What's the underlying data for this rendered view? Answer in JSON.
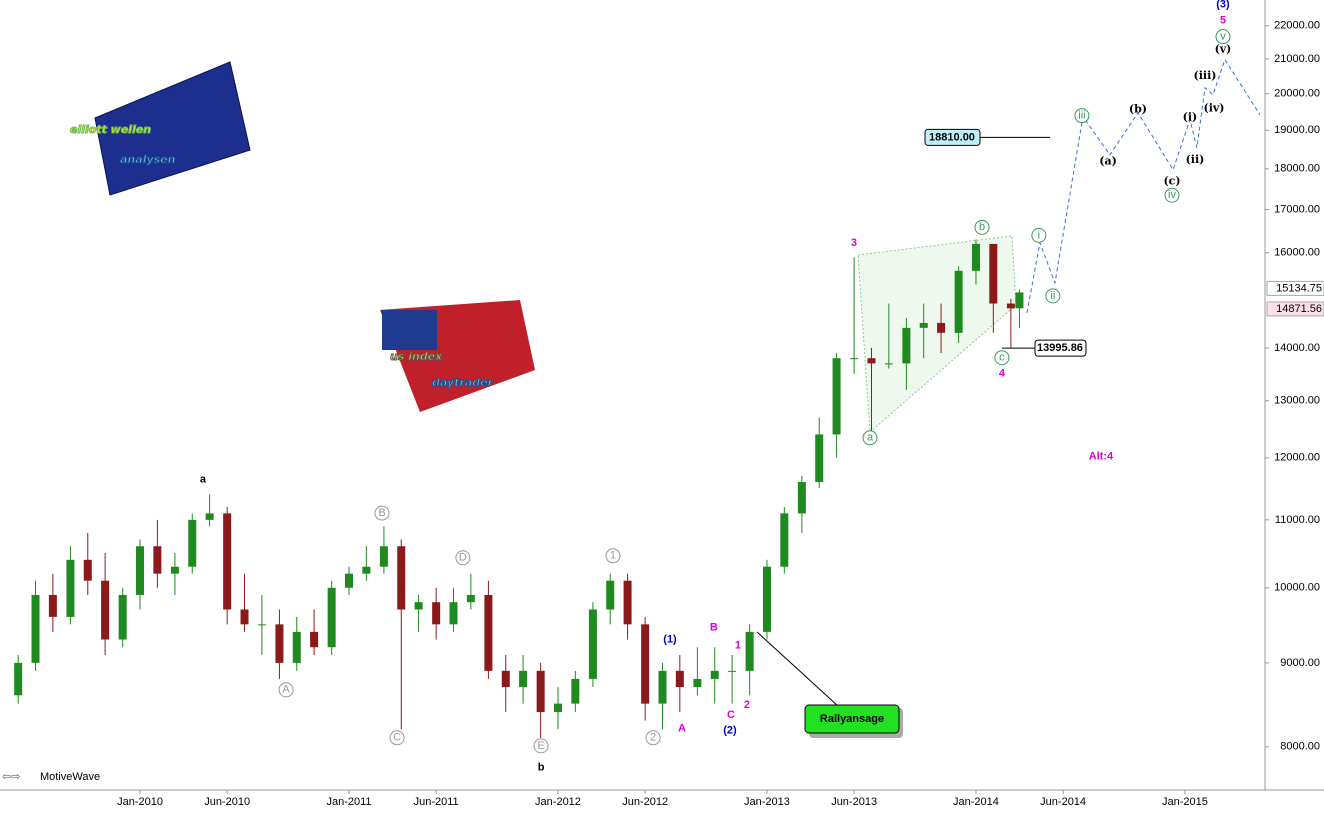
{
  "chart_data": {
    "type": "candlestick",
    "log_scale": true,
    "up_color": "#1f8a1f",
    "down_color": "#8b1a1a",
    "xlim": [
      2009.33,
      2015.383
    ],
    "ylim": [
      7530,
      22810
    ],
    "xticks": [
      {
        "value": 2010,
        "label": "Jan-2010"
      },
      {
        "value": 2010.417,
        "label": "Jun-2010"
      },
      {
        "value": 2011,
        "label": "Jan-2011"
      },
      {
        "value": 2011.417,
        "label": "Jun-2011"
      },
      {
        "value": 2012,
        "label": "Jan-2012"
      },
      {
        "value": 2012.417,
        "label": "Jun-2012"
      },
      {
        "value": 2013,
        "label": "Jan-2013"
      },
      {
        "value": 2013.417,
        "label": "Jun-2013"
      },
      {
        "value": 2014,
        "label": "Jan-2014"
      },
      {
        "value": 2014.417,
        "label": "Jun-2014"
      },
      {
        "value": 2015,
        "label": "Jan-2015"
      }
    ],
    "yticks": [
      {
        "value": 8000,
        "label": "8000.00"
      },
      {
        "value": 9000,
        "label": "9000.00"
      },
      {
        "value": 10000,
        "label": "10000.00"
      },
      {
        "value": 11000,
        "label": "11000.00"
      },
      {
        "value": 12000,
        "label": "12000.00"
      },
      {
        "value": 13000,
        "label": "13000.00"
      },
      {
        "value": 14000,
        "label": "14000.00"
      },
      {
        "value": 16000,
        "label": "16000.00"
      },
      {
        "value": 17000,
        "label": "17000.00"
      },
      {
        "value": 18000,
        "label": "18000.00"
      },
      {
        "value": 19000,
        "label": "19000.00"
      },
      {
        "value": 20000,
        "label": "20000.00"
      },
      {
        "value": 21000,
        "label": "21000.00"
      },
      {
        "value": 22000,
        "label": "22000.00"
      }
    ],
    "x": [
      2009.417,
      2009.5,
      2009.583,
      2009.667,
      2009.75,
      2009.833,
      2009.917,
      2010.0,
      2010.083,
      2010.167,
      2010.25,
      2010.333,
      2010.417,
      2010.5,
      2010.583,
      2010.667,
      2010.75,
      2010.833,
      2010.917,
      2011.0,
      2011.083,
      2011.167,
      2011.25,
      2011.333,
      2011.417,
      2011.5,
      2011.583,
      2011.667,
      2011.75,
      2011.833,
      2011.917,
      2012.0,
      2012.083,
      2012.167,
      2012.25,
      2012.333,
      2012.417,
      2012.5,
      2012.583,
      2012.667,
      2012.75,
      2012.833,
      2012.917,
      2013.0,
      2013.083,
      2013.167,
      2013.25,
      2013.333,
      2013.417,
      2013.5,
      2013.583,
      2013.667,
      2013.75,
      2013.833,
      2013.917,
      2014.0,
      2014.083,
      2014.167,
      2014.208
    ],
    "open": [
      8600,
      9000,
      9900,
      9600,
      10400,
      10100,
      9300,
      9900,
      10600,
      10200,
      10300,
      11000,
      11100,
      9700,
      9500,
      9500,
      9000,
      9400,
      9200,
      10000,
      10200,
      10300,
      10600,
      9700,
      9800,
      9500,
      9800,
      9900,
      8900,
      8700,
      8900,
      8400,
      8500,
      8800,
      9700,
      10100,
      9500,
      8500,
      8900,
      8700,
      8800,
      8900,
      8900,
      9400,
      10300,
      11100,
      11600,
      12400,
      13800,
      13800,
      13700,
      13700,
      14400,
      14500,
      14300,
      15600,
      16200,
      14900,
      14800
    ],
    "high": [
      9100,
      10100,
      10200,
      10600,
      10800,
      10500,
      10000,
      10700,
      11000,
      10500,
      11100,
      11400,
      11200,
      10200,
      9900,
      9700,
      9600,
      9700,
      10100,
      10300,
      10600,
      10900,
      10700,
      9900,
      10000,
      10000,
      10200,
      10100,
      9100,
      9100,
      9000,
      8700,
      8900,
      9800,
      10200,
      10200,
      9600,
      9000,
      9100,
      9200,
      9200,
      9100,
      9500,
      10400,
      11200,
      11700,
      12700,
      13900,
      15900,
      14000,
      14900,
      14600,
      14900,
      14900,
      15700,
      16300,
      16200,
      15000,
      15200
    ],
    "low": [
      8500,
      8900,
      9400,
      9500,
      9900,
      9100,
      9200,
      9700,
      10000,
      9900,
      10200,
      10900,
      9500,
      9400,
      9100,
      8800,
      8900,
      9100,
      9100,
      9900,
      10100,
      10200,
      8200,
      9400,
      9300,
      9400,
      9700,
      8800,
      8400,
      8500,
      8100,
      8200,
      8400,
      8700,
      9500,
      9300,
      8300,
      8200,
      8400,
      8600,
      8500,
      8500,
      8600,
      9300,
      10200,
      10800,
      11500,
      12000,
      13500,
      12400,
      13600,
      13200,
      13800,
      13900,
      14100,
      15300,
      14300,
      13995.86,
      14400
    ],
    "close": [
      9000,
      9900,
      9600,
      10400,
      10100,
      9300,
      9900,
      10600,
      10200,
      10300,
      11000,
      11100,
      9700,
      9500,
      9500,
      9000,
      9400,
      9200,
      10000,
      10200,
      10300,
      10600,
      9700,
      9800,
      9500,
      9800,
      9900,
      8900,
      8700,
      8900,
      8400,
      8500,
      8800,
      9700,
      10100,
      9500,
      8500,
      8900,
      8700,
      8800,
      8900,
      8900,
      9400,
      10300,
      11100,
      11600,
      12400,
      13800,
      13800,
      13700,
      13700,
      14400,
      14500,
      14300,
      15600,
      16200,
      14900,
      14800,
      15134.75
    ],
    "projection": {
      "color": "#3a6fd8",
      "x": [
        2014.244,
        2014.306,
        2014.378,
        2014.512,
        2014.641,
        2014.775,
        2014.943,
        2015.024,
        2015.057,
        2015.096,
        2015.134,
        2015.191,
        2015.359
      ],
      "values": [
        14706,
        16228,
        15338,
        19365,
        18357,
        19472,
        17976,
        19282,
        18540,
        20168,
        19970,
        20977,
        19417
      ]
    },
    "annotations": [
      {
        "text": "a",
        "x": 2010.301,
        "y": 11636,
        "color": "#000",
        "circled": false,
        "big": true
      },
      {
        "text": "b",
        "x": 2011.919,
        "y": 7768,
        "color": "#000",
        "circled": false,
        "big": true
      },
      {
        "text": "A",
        "x": 2010.699,
        "y": 8666,
        "color": "#999",
        "circled": true
      },
      {
        "text": "B",
        "x": 2011.158,
        "y": 11105,
        "color": "#999",
        "circled": true
      },
      {
        "text": "C",
        "x": 2011.23,
        "y": 8102,
        "color": "#999",
        "circled": true
      },
      {
        "text": "D",
        "x": 2011.545,
        "y": 10430,
        "color": "#999",
        "circled": true
      },
      {
        "text": "E",
        "x": 2011.919,
        "y": 8011,
        "color": "#999",
        "circled": true
      },
      {
        "text": "1",
        "x": 2012.263,
        "y": 10459,
        "color": "#999",
        "circled": true
      },
      {
        "text": "2",
        "x": 2012.455,
        "y": 8102,
        "color": "#999",
        "circled": true
      },
      {
        "text": "(1)",
        "x": 2012.536,
        "y": 9296,
        "color": "#0000cc",
        "circled": false
      },
      {
        "text": "(2)",
        "x": 2012.823,
        "y": 8182,
        "color": "#0000cc",
        "circled": false
      },
      {
        "text": "A",
        "x": 2012.593,
        "y": 8205,
        "color": "#e000e0",
        "circled": false
      },
      {
        "text": "B",
        "x": 2012.746,
        "y": 9454,
        "color": "#e000e0",
        "circled": false
      },
      {
        "text": "C",
        "x": 2012.828,
        "y": 8367,
        "color": "#e000e0",
        "circled": false
      },
      {
        "text": "1",
        "x": 2012.861,
        "y": 9218,
        "color": "#e000e0",
        "circled": false
      },
      {
        "text": "2",
        "x": 2012.904,
        "y": 8485,
        "color": "#e000e0",
        "circled": false
      },
      {
        "text": "3",
        "x": 2013.416,
        "y": 16220,
        "color": "#e000e0",
        "circled": false
      },
      {
        "text": "4",
        "x": 2014.124,
        "y": 13504,
        "color": "#e000e0",
        "circled": false
      },
      {
        "text": "5",
        "x": 2015.182,
        "y": 22155,
        "color": "#e000e0",
        "circled": false
      },
      {
        "text": "(3)",
        "x": 2015.182,
        "y": 22658,
        "color": "#0000cc",
        "circled": false
      },
      {
        "text": "a",
        "x": 2013.493,
        "y": 12342,
        "color": "#3a9a5a",
        "circled": true
      },
      {
        "text": "b",
        "x": 2014.029,
        "y": 16581,
        "color": "#3a9a5a",
        "circled": true
      },
      {
        "text": "c",
        "x": 2014.124,
        "y": 13809,
        "color": "#3a9a5a",
        "circled": true
      },
      {
        "text": "i",
        "x": 2014.301,
        "y": 16395,
        "color": "#3a9a5a",
        "circled": true
      },
      {
        "text": "ii",
        "x": 2014.368,
        "y": 15061,
        "color": "#3a9a5a",
        "circled": true
      },
      {
        "text": "iii",
        "x": 2014.507,
        "y": 19394,
        "color": "#3a9a5a",
        "circled": true
      },
      {
        "text": "iv",
        "x": 2014.938,
        "y": 17345,
        "color": "#3a9a5a",
        "circled": true
      },
      {
        "text": "v",
        "x": 2015.182,
        "y": 21666,
        "color": "#3a9a5a",
        "circled": true
      },
      {
        "text": "(a)",
        "x": 2014.632,
        "y": 18180,
        "color": "#000",
        "circled": false
      },
      {
        "text": "(b)",
        "x": 2014.775,
        "y": 19559,
        "color": "#000",
        "circled": false
      },
      {
        "text": "(c)",
        "x": 2014.938,
        "y": 17684,
        "color": "#000",
        "circled": false
      },
      {
        "text": "(i)",
        "x": 2015.024,
        "y": 19340,
        "color": "#000",
        "circled": false
      },
      {
        "text": "(ii)",
        "x": 2015.048,
        "y": 18225,
        "color": "#000",
        "circled": false
      },
      {
        "text": "(iii)",
        "x": 2015.096,
        "y": 20509,
        "color": "#000",
        "circled": false
      },
      {
        "text": "(iv)",
        "x": 2015.139,
        "y": 19587,
        "color": "#000",
        "circled": false
      },
      {
        "text": "(v)",
        "x": 2015.182,
        "y": 21273,
        "color": "#000",
        "circled": false
      },
      {
        "text": "Alt:4",
        "x": 2014.598,
        "y": 12018,
        "color": "#e000e0",
        "circled": false
      }
    ],
    "target": {
      "value": 18810,
      "label": "18810.00"
    },
    "low_marker": {
      "value": 13995.86,
      "label": "13995.86"
    },
    "last_prices": [
      {
        "value": 15134.75,
        "label": "15134.75"
      },
      {
        "value": 14871.56,
        "label": "14871.56"
      }
    ],
    "signal": "Rallyansage",
    "platform": "MotiveWave",
    "logos": [
      [
        "elliott wellen",
        "analysen"
      ],
      [
        "us index",
        "daytrader"
      ]
    ]
  }
}
